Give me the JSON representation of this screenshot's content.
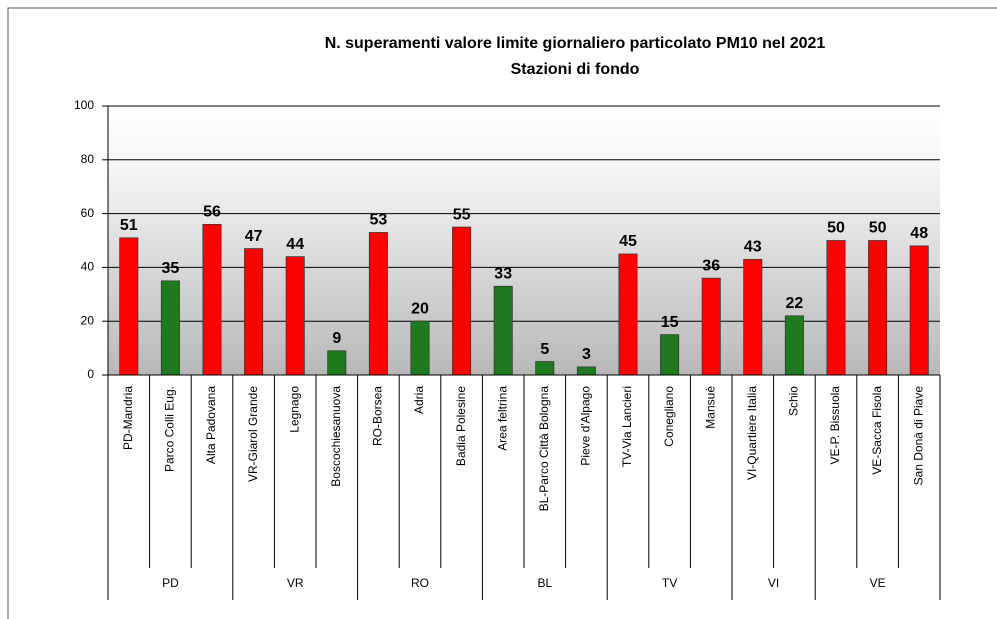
{
  "chart_data": {
    "type": "bar",
    "title": "N. superamenti valore limite giornaliero particolato PM10 nel 2021",
    "subtitle": "Stazioni di fondo",
    "categories": [
      "PD-Mandria",
      "Parco Colli Eug.",
      "Alta Padovana",
      "VR-Giarol Grande",
      "Legnago",
      "Boscochiesanuova",
      "RO-Borsea",
      "Adria",
      "Badia Polesine",
      "Area feltrina",
      "BL-Parco Città Bologna",
      "Pieve d'Alpago",
      "TV-Via Lancieri",
      "Conegliano",
      "Mansuè",
      "VI-Quartiere Italia",
      "Schio",
      "VE-P. Bissuola",
      "VE-Sacca Fisola",
      "San Donà di Piave"
    ],
    "category_groups": [
      "PD",
      "PD",
      "PD",
      "VR",
      "VR",
      "VR",
      "RO",
      "RO",
      "RO",
      "BL",
      "BL",
      "BL",
      "TV",
      "TV",
      "TV",
      "VI",
      "VI",
      "VE",
      "VE",
      "VE"
    ],
    "values": [
      51,
      35,
      56,
      47,
      44,
      9,
      53,
      20,
      55,
      33,
      5,
      3,
      45,
      15,
      36,
      43,
      22,
      50,
      50,
      48
    ],
    "colors": [
      "#ff0000",
      "#1f7a1f",
      "#ff0000",
      "#ff0000",
      "#ff0000",
      "#1f7a1f",
      "#ff0000",
      "#1f7a1f",
      "#ff0000",
      "#1f7a1f",
      "#1f7a1f",
      "#1f7a1f",
      "#ff0000",
      "#1f7a1f",
      "#ff0000",
      "#ff0000",
      "#1f7a1f",
      "#ff0000",
      "#ff0000",
      "#ff0000"
    ],
    "ylim": [
      0,
      100
    ],
    "yticks": [
      0,
      20,
      40,
      60,
      80,
      100
    ],
    "grid": true
  }
}
